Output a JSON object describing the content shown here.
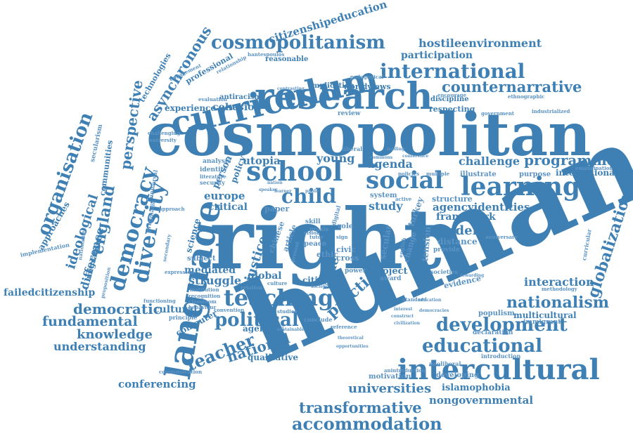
{
  "title": "Word cloud",
  "colors": {
    "word": "#3f80b4",
    "word_light": "#5b93c4",
    "background": "#ffffff"
  },
  "words": {
    "human": "human",
    "right": "right",
    "cosmopolitan": "cosmopolitan",
    "language": "language",
    "research": "research",
    "curriculum": "curriculum",
    "intercultural": "intercultural",
    "school": "school",
    "social": "social",
    "learning": "learning",
    "teaching": "teaching",
    "democracy": "democracy",
    "diversity": "diversity",
    "cosmopolitanism": "cosmopolitanism",
    "international": "international",
    "counternarrative": "counternarrative",
    "development": "development",
    "educational": "educational",
    "globalization": "globalization",
    "political": "political",
    "teacher": "teacher",
    "accommodation": "accommodation",
    "transformative": "transformative",
    "universities": "universities",
    "nationalism": "nationalism",
    "democratic": "democratic",
    "fundamental": "fundamental",
    "knowledge": "knowledge",
    "understanding": "understanding",
    "conferencing": "conferencing",
    "failedcitizenship": "failedcitizenship",
    "organisation": "organisation",
    "ideological": "ideological",
    "england": "england",
    "difference": "difference",
    "perspective": "perspective",
    "asynchronous": "asynchronous",
    "citizenshipeducation": "citizenshipeducation",
    "hostileenvironment": "hostileenvironment",
    "participation": "participation",
    "child": "child",
    "practice": "practice",
    "national": "national",
    "justice": "justice",
    "student": "student",
    "programme": "programme",
    "challenge": "challenge",
    "agencyidentities": "agencyidentities",
    "framework": "framework",
    "young": "young",
    "utopia": "utopia",
    "agenda": "agenda",
    "study": "study",
    "critical": "critical",
    "europe": "europe",
    "struggle": "struggle",
    "global": "global",
    "mediated": "mediated",
    "interaction": "interaction",
    "nongovernmental": "nongovernmental",
    "islamophobia": "islamophobia",
    "qualitative": "qualitative",
    "cohesion": "cohesion",
    "experience": "experience",
    "value": "value",
    "internationale": "internationale",
    "multicultural": "multicultural",
    "project": "project",
    "cultural": "cultural",
    "computer": "computer",
    "agencies": "agencies",
    "identities": "identities",
    "citizen": "citizen",
    "science": "science",
    "person": "person",
    "policy": "policy",
    "worldviews": "worldviews",
    "implication": "implication",
    "respecting": "respecting",
    "discipline": "discipline",
    "antiracism": "antiracism",
    "technologies": "technologies",
    "professional": "professional",
    "reasonable": "reasonable",
    "approaches": "approaches",
    "communities": "communities",
    "migration": "migration",
    "motivation": "motivation",
    "developing": "developing",
    "neoliberal": "neoliberal",
    "introduction": "introduction",
    "populism": "populism",
    "declaration": "declaration",
    "immigrant": "immigrant",
    "distance": "distance",
    "provide": "provide",
    "illustrate": "illustrate",
    "purpose": "purpose",
    "structure": "structure",
    "system": "system",
    "paper": "paper",
    "subject": "subject",
    "communication": "communication",
    "implementation": "implementation",
    "evidence": "evidence",
    "secular": "secular",
    "turkey": "turkey",
    "tension": "tension",
    "change": "change",
    "article": "article",
    "chinese": "chinese",
    "civic": "civic",
    "cross": "cross",
    "ethic": "ethic",
    "skill": "skill",
    "role": "role",
    "peace": "peace",
    "pragmatic": "pragmatic",
    "universal": "universal",
    "nationalist": "nationalist",
    "secularism": "secularism",
    "engagement": "engagement",
    "relationship": "relationship",
    "hantespoulos": "hantespoulos",
    "pedagogical": "pedagogical",
    "government": "government",
    "industrialized": "industrialized",
    "ethnographic": "ethnographic",
    "encourage": "encourage",
    "emancipation": "emancipation",
    "curricular": "curricular",
    "anniversary": "anniversary",
    "methodology": "methodology",
    "societies": "societies",
    "award": "award",
    "power": "power",
    "review": "review",
    "challenging": "challenging",
    "university": "university",
    "evaluation": "evaluation",
    "security": "security",
    "analysis": "analysis",
    "literature": "literature",
    "identity": "identity",
    "approach": "approach",
    "secondary": "secondary",
    "proposition": "proposition",
    "expression": "expression",
    "institution": "institution",
    "recognition": "recognition",
    "classroom": "classroom",
    "behaviour": "behaviour",
    "functioning": "functioning",
    "principle": "principle",
    "convention": "convention",
    "relation": "relation",
    "culture": "culture",
    "studies": "studies",
    "conclude": "conclude",
    "reference": "reference",
    "sustainable": "sustainable",
    "anintroduction": "anintroduction",
    "opportunities": "opportunities",
    "theoretical": "theoretical",
    "education": "education",
    "democracies": "democracies",
    "civilization": "civilization",
    "standard": "standard",
    "construct": "construct",
    "interest": "interest",
    "rewarding": "rewarding",
    "active": "active",
    "vision": "vision",
    "nation": "nation",
    "speaker": "speaker",
    "learner": "learner",
    "public": "public",
    "liberal": "liberal",
    "policies": "policies",
    "multiple": "multiple",
    "commons": "commons",
    "leading": "leading",
    "conference": "conference",
    "contrasting": "contrasting",
    "digital": "digital",
    "present": "present",
    "praxis": "praxis",
    "tutor": "tutor",
    "sign": "sign",
    "english": "english",
    "society": "society"
  }
}
